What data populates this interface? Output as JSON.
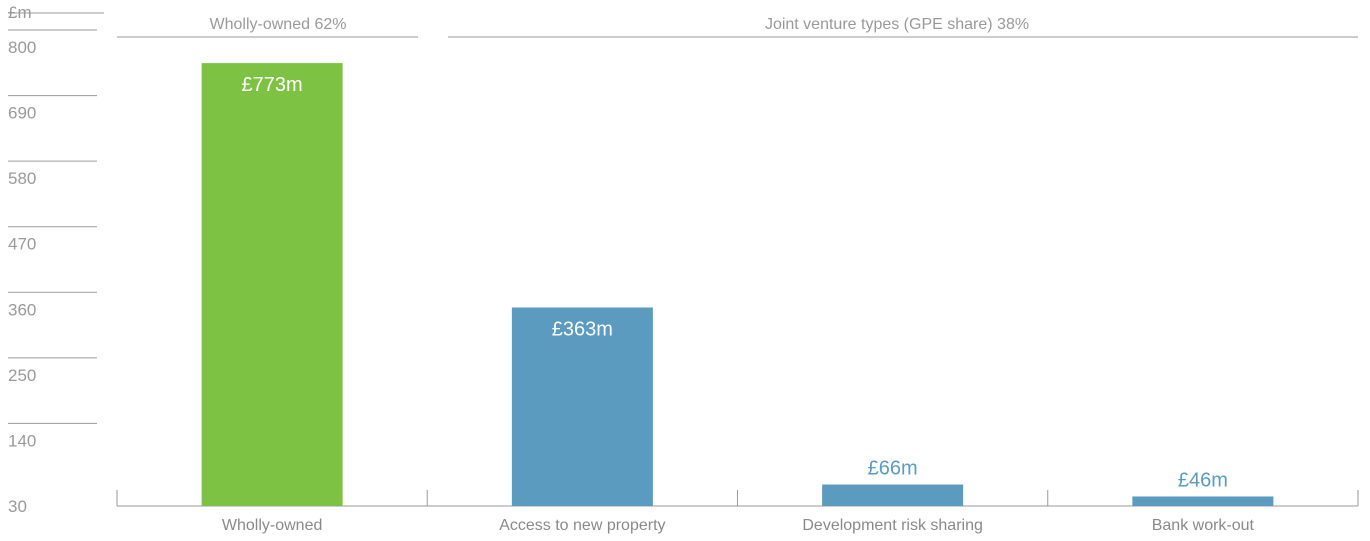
{
  "chart_data": {
    "type": "bar",
    "unit_label": "£m",
    "y_ticks": [
      30,
      140,
      250,
      360,
      470,
      580,
      690,
      800
    ],
    "ylim": [
      30,
      800
    ],
    "grid": false,
    "groups": [
      {
        "label": "Wholly-owned 62%"
      },
      {
        "label": "Joint venture types (GPE share) 38%"
      }
    ],
    "categories": [
      "Wholly-owned",
      "Access to new property",
      "Development risk sharing",
      "Bank work-out"
    ],
    "values": [
      773,
      363,
      66,
      46
    ],
    "value_labels": [
      "£773m",
      "£363m",
      "£66m",
      "£46m"
    ],
    "colors": {
      "wholly_owned": "#7dc242",
      "joint_venture": "#5a9bbf",
      "axis": "#9a9a9a",
      "label_inside": "#ffffff"
    },
    "bar_colors": [
      "#7dc242",
      "#5a9bbf",
      "#5a9bbf",
      "#5a9bbf"
    ]
  }
}
